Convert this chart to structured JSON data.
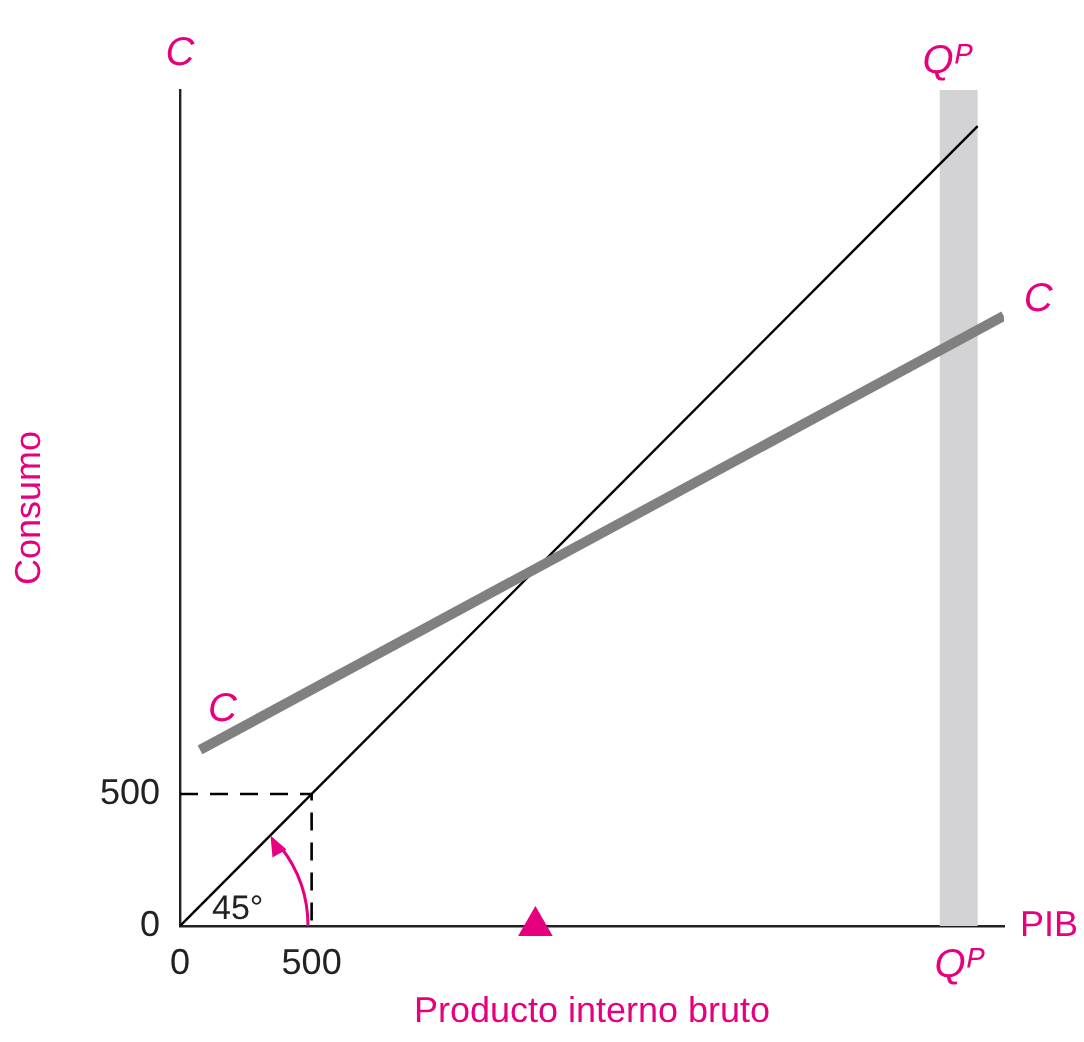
{
  "chart_data": {
    "type": "line",
    "xlabel": "Producto interno bruto",
    "ylabel": "Consumo",
    "xlim": [
      0,
      3130
    ],
    "ylim": [
      0,
      3167
    ],
    "xticks": [
      0,
      500,
      {
        "value": 2958,
        "label": "Qᴾ"
      }
    ],
    "yticks": [
      0,
      500
    ],
    "grid": false,
    "legend": false,
    "series": [
      {
        "name": "C",
        "color": "#808080",
        "x": [
          76,
          3129
        ],
        "values": [
          667,
          2311
        ]
      },
      {
        "color": "#000000",
        "x": [
          0,
          3030
        ],
        "values": [
          0,
          3030
        ]
      },
      {
        "color": "#000000",
        "line_style": "dashed",
        "x": [
          0,
          500,
          500
        ],
        "values": [
          500,
          500,
          0
        ]
      },
      {
        "type": "scatter",
        "marker": "triangle",
        "color": "#e6007e",
        "x": [
          1350
        ],
        "values": [
          0
        ]
      }
    ],
    "bands": [
      {
        "axis": "x",
        "from": 2886,
        "to": 3030,
        "label": "Qᴾ",
        "color": "#d3d3d5"
      }
    ],
    "annotations": [
      "C",
      "PIB",
      "45°"
    ]
  }
}
